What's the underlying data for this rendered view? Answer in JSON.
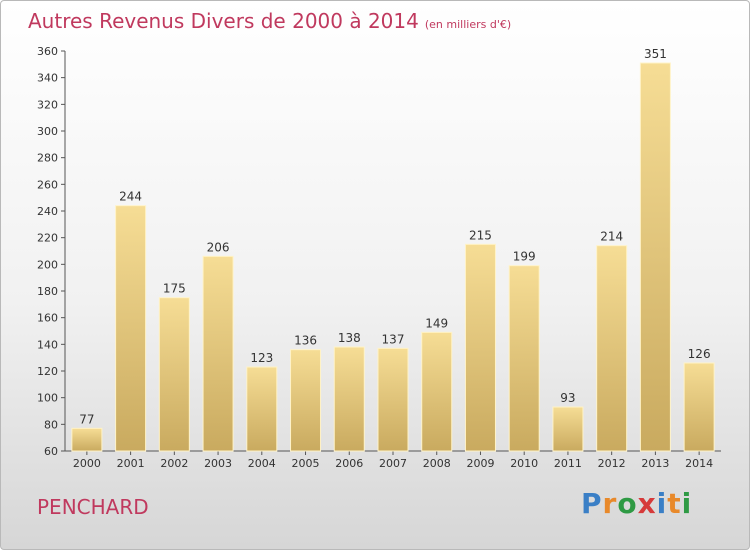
{
  "chart_data": {
    "type": "bar",
    "title": "Autres Revenus Divers de 2000 à 2014",
    "subtitle": "(en milliers d'€)",
    "categories": [
      "2000",
      "2001",
      "2002",
      "2003",
      "2004",
      "2005",
      "2006",
      "2007",
      "2008",
      "2009",
      "2010",
      "2011",
      "2012",
      "2013",
      "2014"
    ],
    "values": [
      77,
      244,
      175,
      206,
      123,
      136,
      138,
      137,
      149,
      215,
      199,
      93,
      214,
      351,
      126
    ],
    "yticks": [
      60,
      80,
      100,
      120,
      140,
      160,
      180,
      200,
      220,
      240,
      260,
      280,
      300,
      320,
      340,
      360
    ],
    "ylim": [
      60,
      360
    ],
    "grid": false,
    "bar_color": "#f1d589"
  },
  "place_name": "PENCHARD",
  "logo": {
    "text": "Proxiti",
    "colors": [
      "#3a7fc6",
      "#e8892a",
      "#2e9a44",
      "#d63a3a",
      "#3a7fc6",
      "#e8892a",
      "#2e9a44"
    ]
  }
}
